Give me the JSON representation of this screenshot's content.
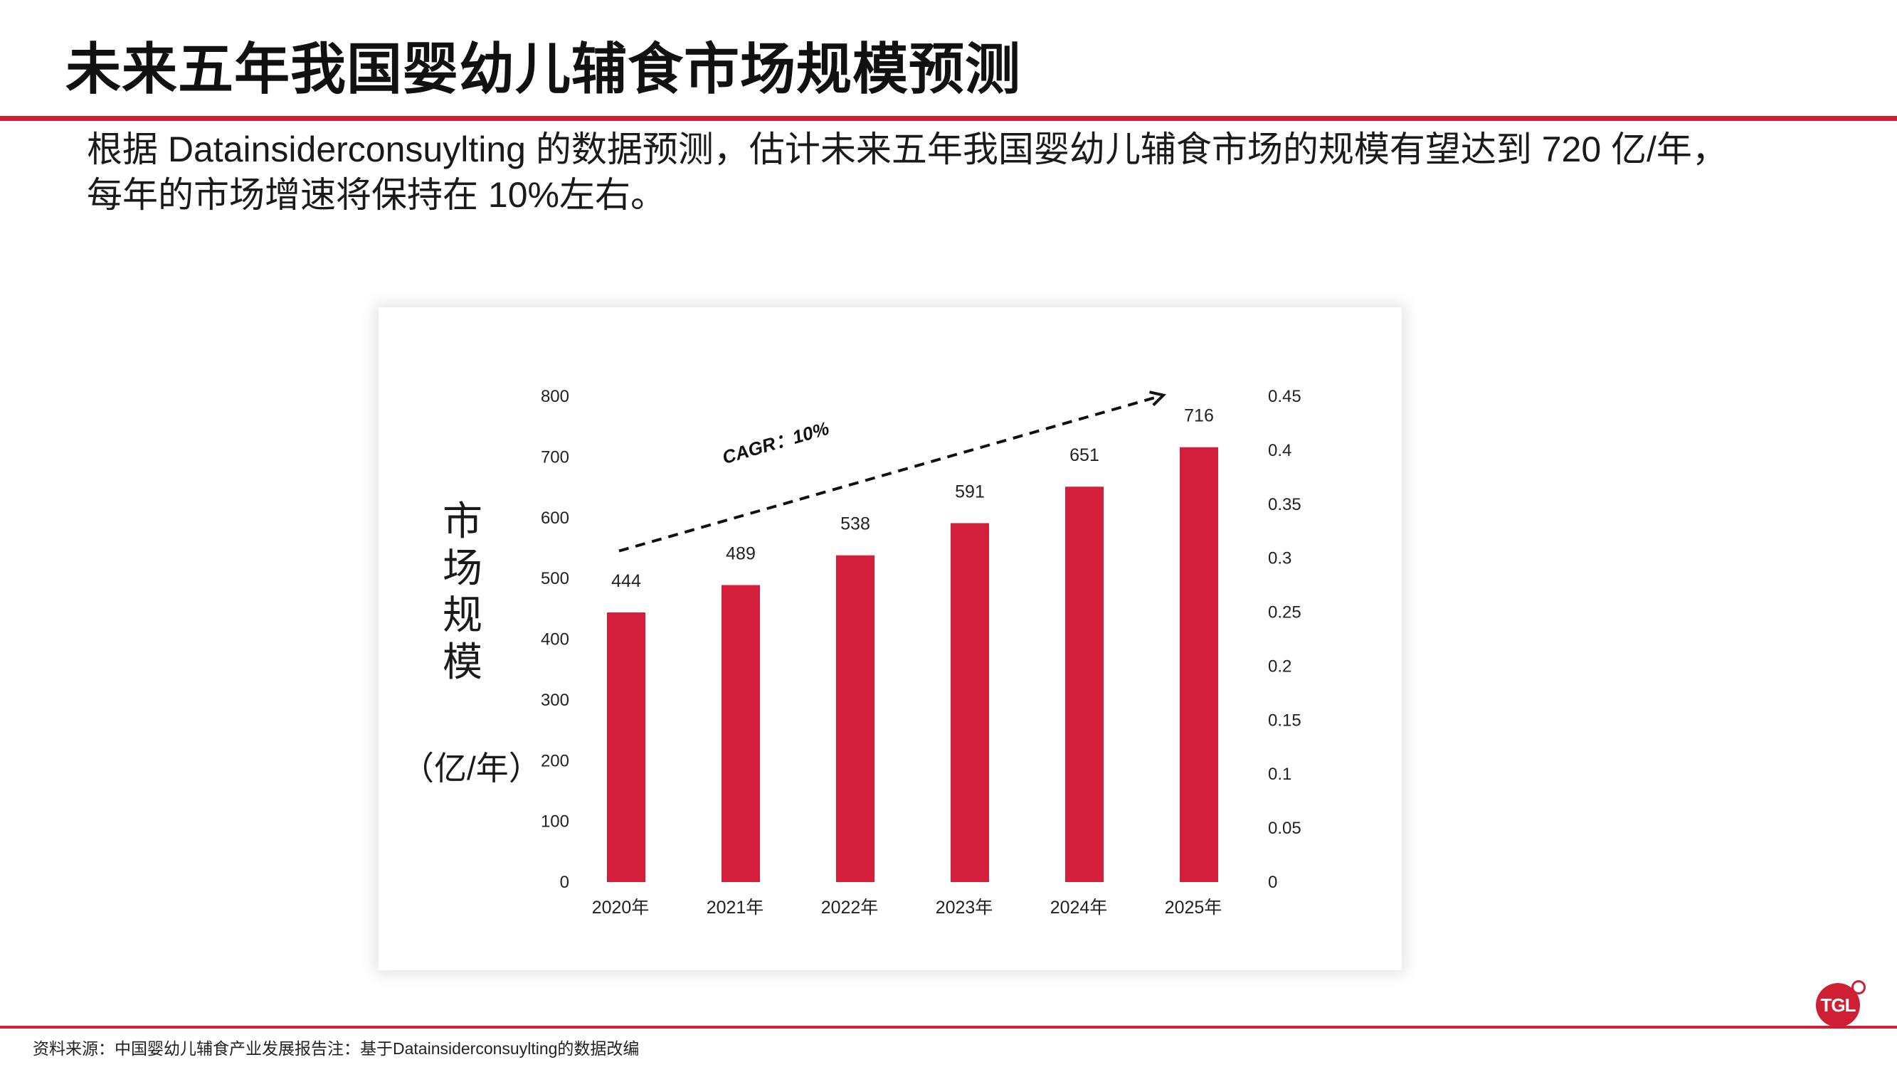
{
  "page": {
    "title": "未来五年我国婴幼儿辅食市场规模预测",
    "intro_line1": "根据 Datainsiderconsuylting 的数据预测，估计未来五年我国婴幼儿辅食市场的规模有望达到 720 亿/年，",
    "intro_line2": "每年的市场增速将保持在 10%左右。",
    "source": "资料来源：中国婴幼儿辅食产业发展报告注：基于Datainsiderconsuylting的数据改编",
    "logo_text": "TGL",
    "accent_color": "#cf1f35"
  },
  "chart_data": {
    "type": "bar",
    "title": "",
    "ylabel": "市场规模",
    "ylabel_unit": "（亿/年）",
    "categories": [
      "2020年",
      "2021年",
      "2022年",
      "2023年",
      "2024年",
      "2025年"
    ],
    "series": [
      {
        "values": [
          444,
          489,
          538,
          591,
          651,
          716
        ],
        "color": "#d31e3c"
      }
    ],
    "data_labels": [
      "444",
      "489",
      "538",
      "591",
      "651",
      "716"
    ],
    "ylim": [
      0,
      800
    ],
    "y_ticks": [
      "0",
      "100",
      "200",
      "300",
      "400",
      "500",
      "600",
      "700",
      "800"
    ],
    "y2lim": [
      0,
      0.45
    ],
    "y2_ticks": [
      "0",
      "0.05",
      "0.1",
      "0.15",
      "0.2",
      "0.25",
      "0.3",
      "0.35",
      "0.4",
      "0.45"
    ],
    "annotation": {
      "text": "CAGR：10%",
      "style": "dashed-arrow",
      "from": {
        "category": "2020年",
        "value": 510
      },
      "to": {
        "category": "2025年",
        "value": 790
      }
    },
    "grid": false,
    "legend": "none"
  }
}
